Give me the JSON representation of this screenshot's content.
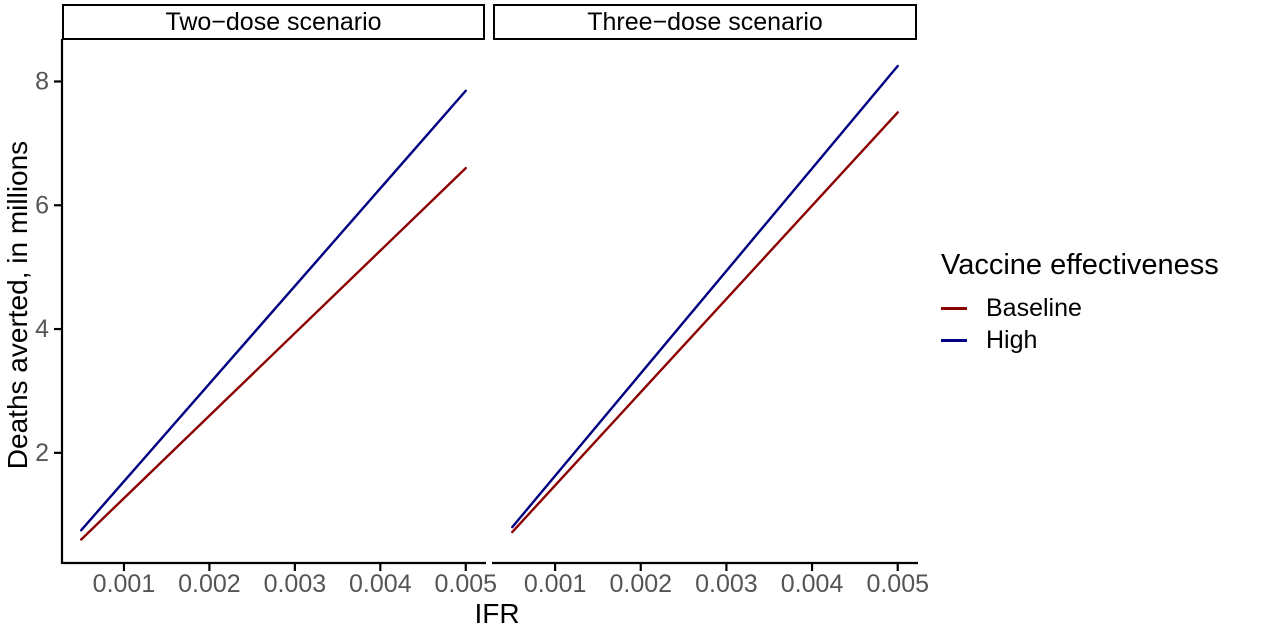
{
  "figure": {
    "background": "#ffffff",
    "axis_color": "#000000",
    "tick_label_color": "#555555"
  },
  "chart_data": {
    "type": "line",
    "title": "",
    "xlabel": "IFR",
    "ylabel": "Deaths averted, in millions",
    "xlim": [
      0.000275,
      0.005225
    ],
    "ylim": [
      0.22,
      8.67
    ],
    "x_ticks": [
      {
        "value": 0.001,
        "label": "0.001"
      },
      {
        "value": 0.002,
        "label": "0.002"
      },
      {
        "value": 0.003,
        "label": "0.003"
      },
      {
        "value": 0.004,
        "label": "0.004"
      },
      {
        "value": 0.005,
        "label": "0.005"
      }
    ],
    "y_ticks": [
      {
        "value": 2,
        "label": "2"
      },
      {
        "value": 4,
        "label": "4"
      },
      {
        "value": 6,
        "label": "6"
      },
      {
        "value": 8,
        "label": "8"
      }
    ],
    "grid": false,
    "facets": [
      {
        "label": "Two−dose scenario",
        "series": [
          {
            "name": "Baseline",
            "color": "#8B0000",
            "x": [
              0.0005,
              0.005
            ],
            "y": [
              0.6,
              6.6
            ]
          },
          {
            "name": "High",
            "color": "#000080",
            "x": [
              0.0005,
              0.005
            ],
            "y": [
              0.75,
              7.85
            ]
          }
        ]
      },
      {
        "label": "Three−dose scenario",
        "series": [
          {
            "name": "Baseline",
            "color": "#8B0000",
            "x": [
              0.0005,
              0.005
            ],
            "y": [
              0.72,
              7.5
            ]
          },
          {
            "name": "High",
            "color": "#000080",
            "x": [
              0.0005,
              0.005
            ],
            "y": [
              0.8,
              8.25
            ]
          }
        ]
      }
    ],
    "legend": {
      "position": "right",
      "title": "Vaccine effectiveness",
      "entries": [
        {
          "label": "Baseline",
          "color": "#8B0000"
        },
        {
          "label": "High",
          "color": "#000080"
        }
      ]
    }
  }
}
